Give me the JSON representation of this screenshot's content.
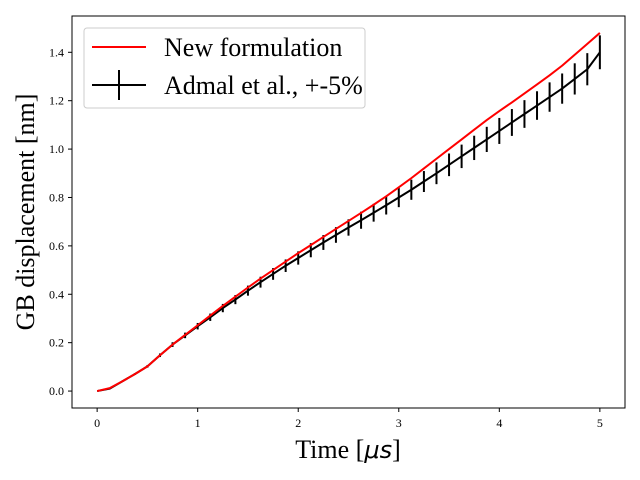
{
  "chart_data": {
    "type": "line",
    "title": "",
    "xlabel": "Time [",
    "xlabel_unit": "μs",
    "xlabel_close": "]",
    "ylabel": "GB displacement [nm]",
    "xlim": [
      -0.25,
      5.25
    ],
    "ylim": [
      -0.07,
      1.55
    ],
    "x_ticks": [
      0,
      1,
      2,
      3,
      4,
      5
    ],
    "x_tick_labels": [
      "0",
      "1",
      "2",
      "3",
      "4",
      "5"
    ],
    "y_ticks": [
      0.0,
      0.2,
      0.4,
      0.6,
      0.8,
      1.0,
      1.2,
      1.4
    ],
    "y_tick_labels": [
      "0.0",
      "0.2",
      "0.4",
      "0.6",
      "0.8",
      "1.0",
      "1.2",
      "1.4"
    ],
    "grid": false,
    "legend_position": "top-left",
    "series": [
      {
        "name": "New formulation",
        "color": "#ff0000",
        "x": [
          0,
          0.125,
          0.25,
          0.375,
          0.5,
          0.625,
          0.75,
          0.875,
          1.0,
          1.125,
          1.25,
          1.375,
          1.5,
          1.625,
          1.75,
          1.875,
          2.0,
          2.125,
          2.25,
          2.375,
          2.5,
          2.625,
          2.75,
          2.875,
          3.0,
          3.125,
          3.25,
          3.375,
          3.5,
          3.625,
          3.75,
          3.875,
          4.0,
          4.125,
          4.25,
          4.375,
          4.5,
          4.625,
          4.75,
          4.875,
          5.0
        ],
        "y": [
          0.0,
          0.012,
          0.04,
          0.07,
          0.102,
          0.148,
          0.192,
          0.232,
          0.272,
          0.312,
          0.352,
          0.39,
          0.428,
          0.465,
          0.5,
          0.535,
          0.57,
          0.603,
          0.637,
          0.67,
          0.703,
          0.736,
          0.77,
          0.805,
          0.842,
          0.88,
          0.92,
          0.96,
          1.0,
          1.04,
          1.08,
          1.12,
          1.157,
          1.193,
          1.23,
          1.267,
          1.305,
          1.345,
          1.39,
          1.435,
          1.48
        ]
      },
      {
        "name": "Admal et al., +-5%",
        "color": "#000000",
        "error_percent": 5,
        "x": [
          0,
          0.125,
          0.25,
          0.375,
          0.5,
          0.625,
          0.75,
          0.875,
          1.0,
          1.125,
          1.25,
          1.375,
          1.5,
          1.625,
          1.75,
          1.875,
          2.0,
          2.125,
          2.25,
          2.375,
          2.5,
          2.625,
          2.75,
          2.875,
          3.0,
          3.125,
          3.25,
          3.375,
          3.5,
          3.625,
          3.75,
          3.875,
          4.0,
          4.125,
          4.25,
          4.375,
          4.5,
          4.625,
          4.75,
          4.875,
          5.0
        ],
        "y": [
          0.0,
          0.01,
          0.04,
          0.07,
          0.102,
          0.148,
          0.192,
          0.23,
          0.268,
          0.305,
          0.343,
          0.378,
          0.415,
          0.45,
          0.484,
          0.518,
          0.55,
          0.582,
          0.614,
          0.645,
          0.676,
          0.706,
          0.737,
          0.768,
          0.8,
          0.832,
          0.866,
          0.9,
          0.935,
          0.97,
          1.005,
          1.04,
          1.075,
          1.11,
          1.145,
          1.18,
          1.215,
          1.25,
          1.29,
          1.33,
          1.4
        ]
      }
    ]
  }
}
